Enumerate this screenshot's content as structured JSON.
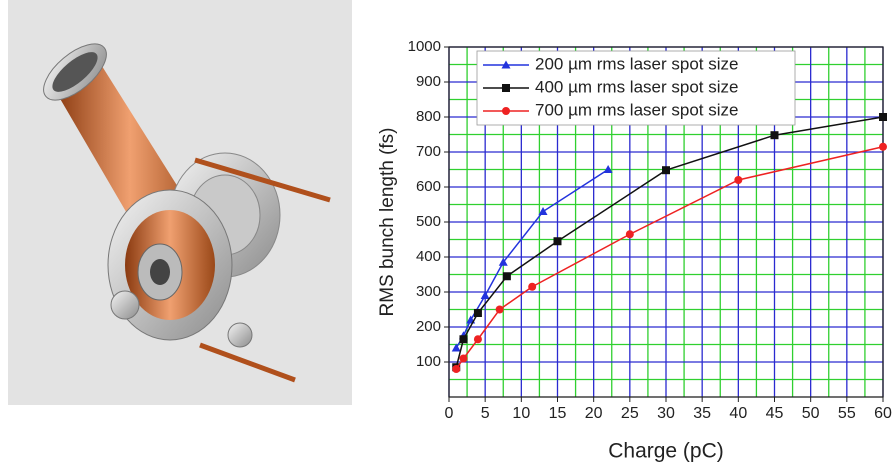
{
  "chart_data": {
    "type": "line",
    "xlabel": "Charge (pC)",
    "ylabel": "RMS bunch length (fs)",
    "xlim": [
      0,
      60
    ],
    "ylim": [
      0,
      1000
    ],
    "xticks": [
      0,
      5,
      10,
      15,
      20,
      25,
      30,
      35,
      40,
      45,
      50,
      55,
      60
    ],
    "yticks": [
      100,
      200,
      300,
      400,
      500,
      600,
      700,
      800,
      900,
      1000
    ],
    "grid": true,
    "grid_colors": {
      "major": "#2a2ad0",
      "minor": "#2fd02f"
    },
    "legend": "upper left",
    "series": [
      {
        "name": "200 µm rms laser spot size",
        "color": "#2233dd",
        "marker": "triangle",
        "x": [
          1,
          2,
          3,
          5,
          7.5,
          13,
          22
        ],
        "values": [
          140,
          175,
          220,
          290,
          385,
          530,
          650
        ]
      },
      {
        "name": "400 µm rms laser spot size",
        "color": "#111111",
        "marker": "square",
        "x": [
          1,
          2,
          4,
          8,
          15,
          30,
          45,
          60
        ],
        "values": [
          85,
          165,
          240,
          345,
          445,
          648,
          748,
          800
        ]
      },
      {
        "name": "700 µm rms laser spot size",
        "color": "#ee2222",
        "marker": "circle",
        "x": [
          1,
          2,
          4,
          7,
          11.5,
          25,
          40,
          60
        ],
        "values": [
          80,
          110,
          165,
          250,
          315,
          465,
          620,
          715
        ]
      }
    ]
  }
}
